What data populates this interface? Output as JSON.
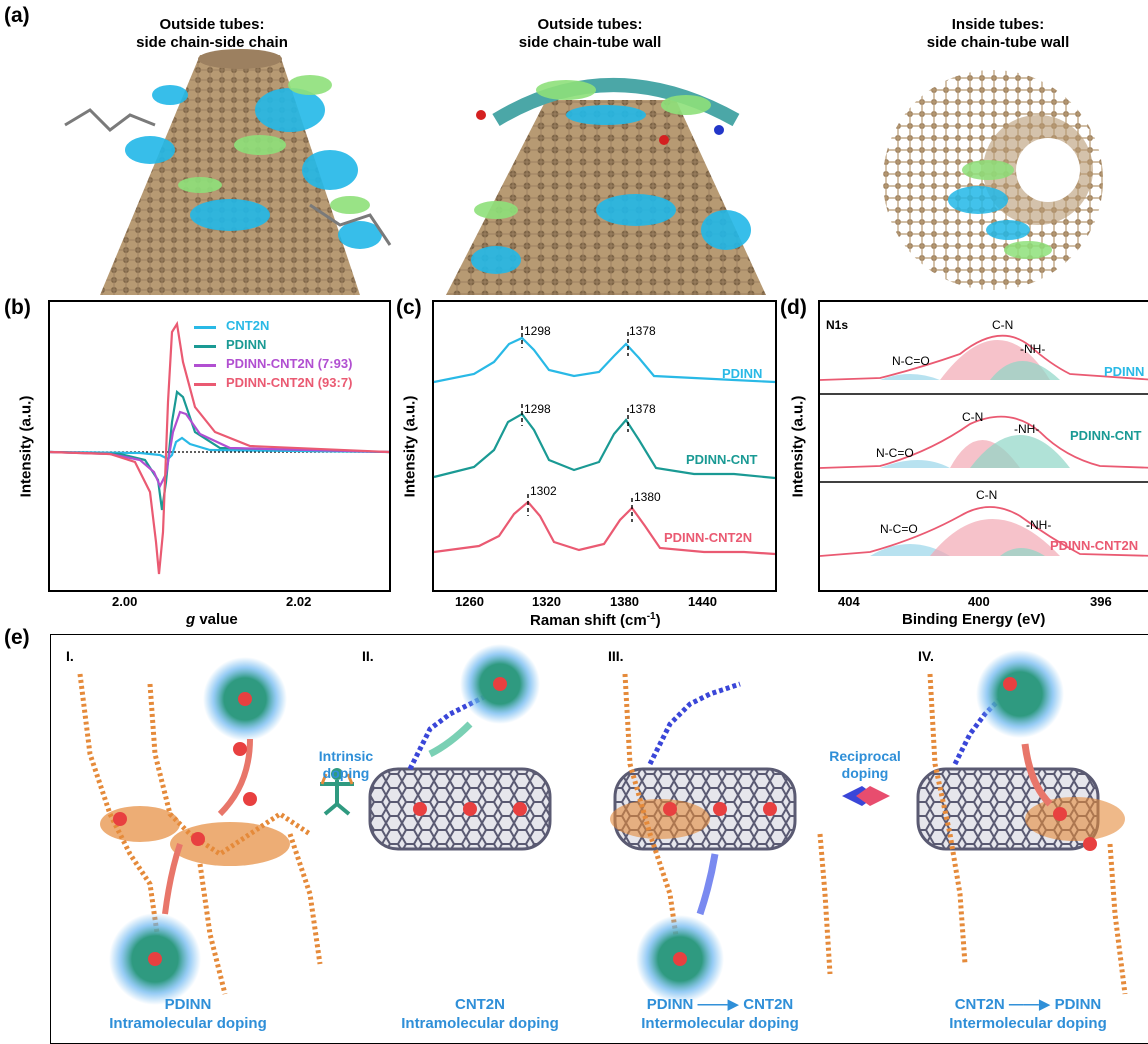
{
  "panel_a": {
    "letter": "(a)",
    "titles": [
      {
        "line1": "Outside tubes:",
        "line2": "side chain-side chain"
      },
      {
        "line1": "Outside tubes:",
        "line2": "side chain-tube wall"
      },
      {
        "line1": "Inside tubes:",
        "line2": "side chain-tube wall"
      }
    ]
  },
  "panel_b": {
    "letter": "(b)",
    "xlabel_italic": "g",
    "xlabel_rest": " value",
    "ylabel": "Intensity (a.u.)",
    "xticks": [
      "2.00",
      "2.02"
    ],
    "legend": [
      "CNT2N",
      "PDINN",
      "PDINN-CNT2N (7:93)",
      "PDINN-CNT2N (93:7)"
    ],
    "colors": [
      "#29b9e6",
      "#1a9a94",
      "#b14fd1",
      "#ea5a72"
    ]
  },
  "panel_c": {
    "letter": "(c)",
    "xlabel": "Raman shift (cm",
    "xlabel_sup": "-1",
    "xlabel_end": ")",
    "ylabel": "Intensity (a.u.)",
    "xticks": [
      "1260",
      "1320",
      "1380",
      "1440"
    ],
    "curves": [
      {
        "name": "PDINN",
        "peak1": "1298",
        "peak2": "1378",
        "color": "#29b9e6"
      },
      {
        "name": "PDINN-CNT",
        "peak1": "1298",
        "peak2": "1378",
        "color": "#1a9a94"
      },
      {
        "name": "PDINN-CNT2N",
        "peak1": "1302",
        "peak2": "1380",
        "color": "#ea5a72"
      }
    ]
  },
  "panel_d": {
    "letter": "(d)",
    "corner": "N1s",
    "xlabel": "Binding Energy (eV)",
    "ylabel": "Intensity (a.u.)",
    "xticks": [
      "404",
      "400",
      "396"
    ],
    "peaks": {
      "nco": "N-C=O",
      "cn": "C-N",
      "nh": "-NH-"
    },
    "curves": [
      {
        "name": "PDINN",
        "color": "#29b9e6"
      },
      {
        "name": "PDINN-CNT",
        "color": "#1a9a94"
      },
      {
        "name": "PDINN-CNT2N",
        "color": "#ea5a72"
      }
    ]
  },
  "panel_e": {
    "letter": "(e)",
    "stages": [
      {
        "roman": "I.",
        "cap1": "PDINN",
        "cap2": "Intramolecular doping"
      },
      {
        "roman": "II.",
        "cap1": "CNT2N",
        "cap2": "Intramolecular doping"
      },
      {
        "roman": "III.",
        "cap1": "PDINN ——▶ CNT2N",
        "cap2": "Intermolecular doping"
      },
      {
        "roman": "IV.",
        "cap1": "CNT2N ——▶ PDINN",
        "cap2": "Intermolecular doping"
      }
    ],
    "intrinsic": {
      "line1": "Intrinsic",
      "line2": "doping"
    },
    "reciprocal": {
      "line1": "Reciprocal",
      "line2": "doping"
    },
    "charge_symbol": "e"
  }
}
